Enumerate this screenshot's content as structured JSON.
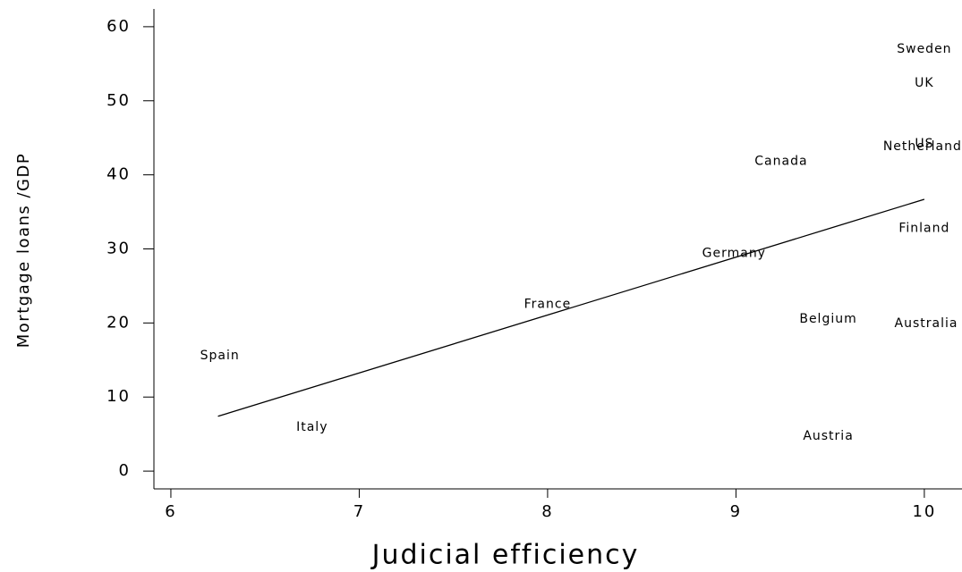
{
  "chart_data": {
    "type": "scatter",
    "x_label": "Judicial efficiency",
    "y_label": "Mortgage loans /GDP",
    "labels": [
      "Spain",
      "Italy",
      "France",
      "Germany",
      "Canada",
      "Belgium",
      "Austria",
      "Sweden",
      "UK",
      "US",
      "Netherlands",
      "Finland",
      "Australia"
    ],
    "x": [
      6.26,
      6.75,
      8.0,
      8.99,
      9.24,
      9.49,
      9.49,
      10.0,
      10.0,
      10.0,
      10.01,
      10.0,
      10.01
    ],
    "values": [
      15.6,
      5.9,
      22.5,
      29.4,
      41.8,
      20.5,
      4.7,
      57.0,
      52.4,
      44.2,
      43.8,
      32.8,
      19.9
    ],
    "color": "#000000",
    "fit_line": {
      "x": [
        6.25,
        10.0
      ],
      "values": [
        7.4,
        36.7
      ]
    },
    "xlim": [
      5.91,
      10.2
    ],
    "xticks": [
      6,
      7,
      8,
      9,
      10
    ],
    "ylim": [
      -2.4,
      62.4
    ],
    "yticks": [
      0,
      10,
      20,
      30,
      40,
      50,
      60
    ],
    "grid": false
  }
}
